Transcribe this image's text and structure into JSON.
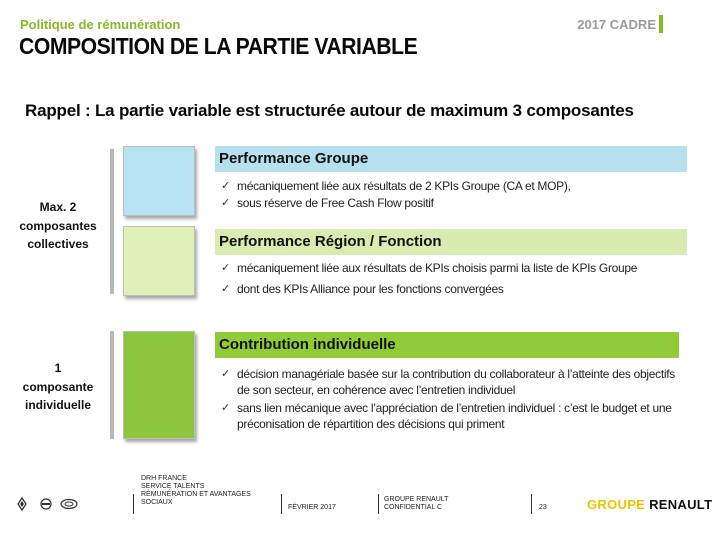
{
  "header": {
    "kicker": "Politique de rémunération",
    "title": "COMPOSITION DE LA PARTIE VARIABLE",
    "year": "2017 CADRE"
  },
  "subtitle": "Rappel : La partie variable est structurée autour de maximum 3 composantes",
  "groups": [
    {
      "lines": [
        "Max. 2",
        "composantes",
        "collectives"
      ]
    },
    {
      "lines": [
        "1",
        "composante",
        "individuelle"
      ]
    }
  ],
  "sections": [
    {
      "title": "Performance Groupe",
      "color": "#b7e0ee",
      "square_color": "#b7e2f2",
      "bullets": [
        "mécaniquement liée aux résultats de 2 KPIs Groupe (CA et MOP),",
        "sous réserve de Free Cash Flow positif"
      ]
    },
    {
      "title": "Performance Région / Fonction",
      "color": "#d8ebb0",
      "square_color": "#dff0b8",
      "bullets": [
        "mécaniquement liée aux résultats de KPIs choisis  parmi la liste de KPIs Groupe",
        "dont des KPIs Alliance pour les fonctions convergées"
      ]
    },
    {
      "title": "Contribution individuelle",
      "color": "#92cb3a",
      "square_color": "#8cc63f",
      "bullets": [
        "décision managériale basée sur la contribution du collaborateur à l’atteinte des objectifs de son secteur, en cohérence avec l’entretien individuel",
        "sans lien mécanique avec l’appréciation de l’entretien individuel : c’est le budget et une préconisation de répartition des décisions qui priment"
      ]
    }
  ],
  "check_glyph": "✓",
  "footer": {
    "dept_lines": [
      "DRH FRANCE",
      "SERVICE TALENTS",
      "RÉMUNÉRATION ET AVANTAGES",
      "SOCIAUX"
    ],
    "date": "FÉVRIER 2017",
    "company_lines": [
      "GROUPE RENAULT",
      "CONFIDENTIAL C"
    ],
    "page": "23",
    "brand_part1": "GROUPE",
    "brand_part2": "RENAULT",
    "brand_color": "#f2c200"
  }
}
